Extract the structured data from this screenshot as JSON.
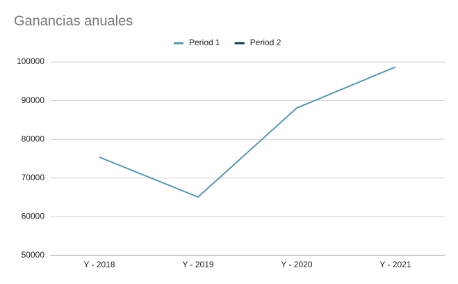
{
  "chart_data": {
    "type": "line",
    "title": "Ganancias anuales",
    "categories": [
      "Y - 2018",
      "Y - 2019",
      "Y - 2020",
      "Y - 2021"
    ],
    "series": [
      {
        "name": "Period 1",
        "color": "#5b95ad",
        "values": [
          75400,
          65100,
          88100,
          98700
        ]
      },
      {
        "name": "Period 2",
        "color": "#0f3c55",
        "values": [
          null,
          null,
          null,
          null
        ]
      }
    ],
    "ylim": [
      50000,
      100000
    ],
    "yticks": [
      50000,
      60000,
      70000,
      80000,
      90000,
      100000
    ],
    "grid": true,
    "legend": "top"
  }
}
